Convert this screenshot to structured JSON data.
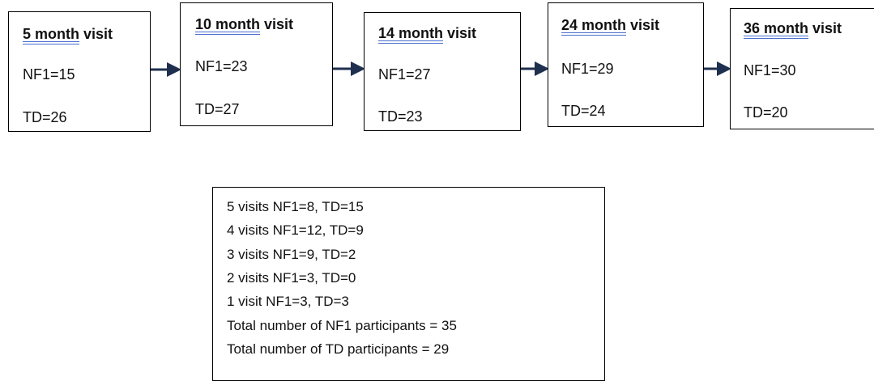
{
  "nodes": [
    {
      "title_underlined": "5 month",
      "title_rest": "visit",
      "nf1": "NF1=15",
      "td": "TD=26"
    },
    {
      "title_underlined": "10 month",
      "title_rest": "visit",
      "nf1": "NF1=23",
      "td": "TD=27"
    },
    {
      "title_underlined": "14 month",
      "title_rest": "visit",
      "nf1": "NF1=27",
      "td": "TD=23"
    },
    {
      "title_underlined": "24 month",
      "title_rest": "visit",
      "nf1": "NF1=29",
      "td": "TD=24"
    },
    {
      "title_underlined": "36 month",
      "title_rest": "visit",
      "nf1": "NF1=30",
      "td": "TD=20"
    }
  ],
  "summary": {
    "lines": [
      "5 visits NF1=8, TD=15",
      "4 visits NF1=12, TD=9",
      "3 visits NF1=9, TD=2",
      "2 visits NF1=3, TD=0",
      "1 visit NF1=3, TD=3",
      "Total number of NF1 participants = 35",
      "Total number of TD participants = 29"
    ]
  }
}
